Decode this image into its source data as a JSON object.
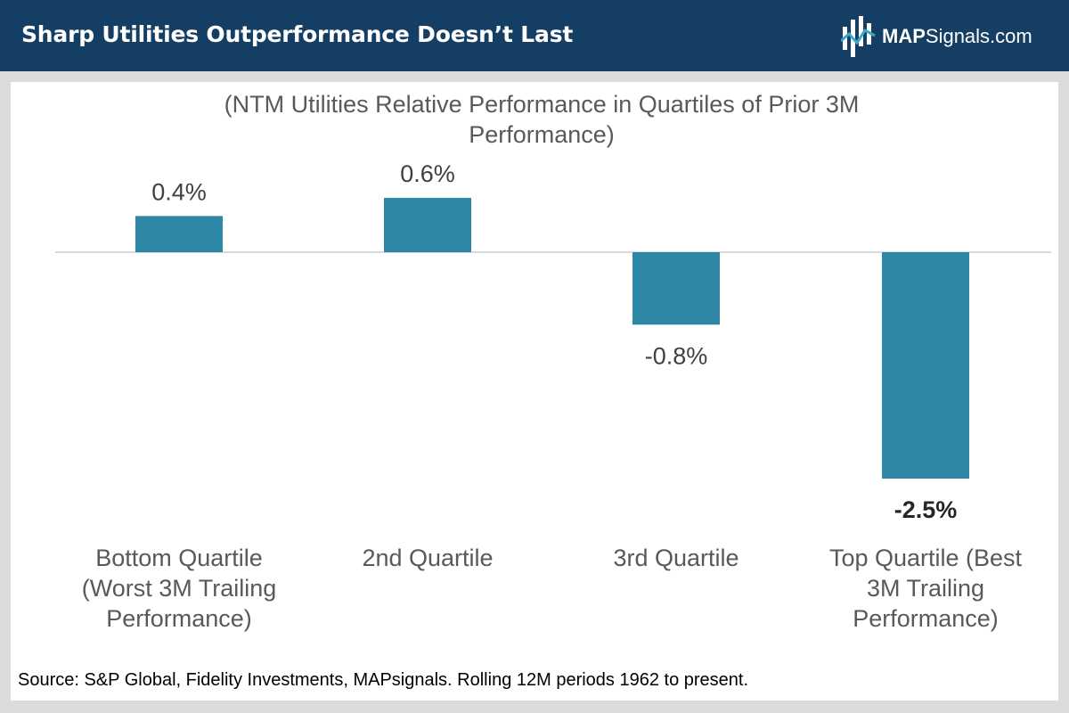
{
  "header": {
    "title": "Sharp Utilities Outperformance Doesn’t Last",
    "logo_text_bold": "MAP",
    "logo_text_regular": "Signals.com"
  },
  "colors": {
    "header_bg": "#153e64",
    "bar": "#2e87a5",
    "zero_line": "#d9d9d9",
    "frame": "#dcdcdc"
  },
  "chart_data": {
    "type": "bar",
    "title_lines": [
      "(NTM Utilities Relative Performance in Quartiles of Prior 3M",
      "Performance)"
    ],
    "categories": [
      [
        "Bottom Quartile",
        "(Worst 3M Trailing",
        "Performance)"
      ],
      [
        "2nd Quartile"
      ],
      [
        "3rd Quartile"
      ],
      [
        "Top Quartile (Best",
        "3M Trailing",
        "Performance)"
      ]
    ],
    "values": [
      0.4,
      0.6,
      -0.8,
      -2.5
    ],
    "value_labels": [
      "0.4%",
      "0.6%",
      "-0.8%",
      "-2.5%"
    ],
    "bold_labels": [
      false,
      false,
      false,
      true
    ],
    "ylim": [
      -2.5,
      0.6
    ],
    "grid": false,
    "legend": "none"
  },
  "footer": {
    "source": "Source: S&P Global, Fidelity Investments, MAPsignals. Rolling 12M periods 1962 to present."
  }
}
